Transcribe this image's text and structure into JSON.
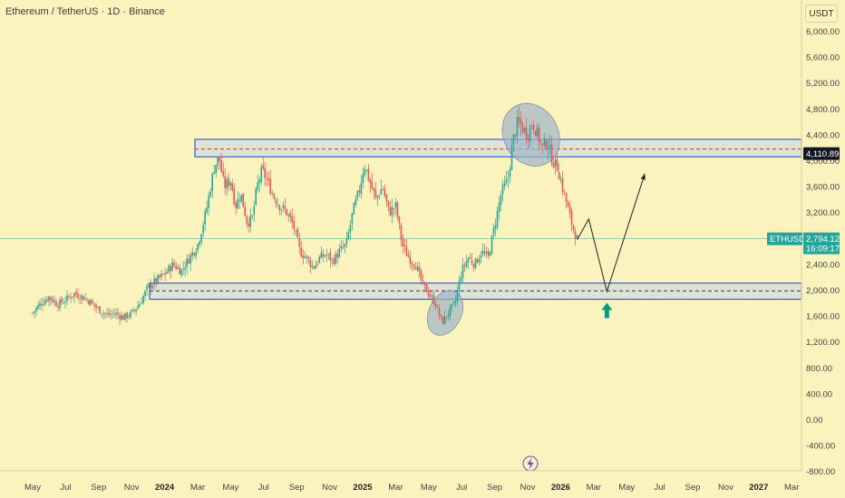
{
  "header": {
    "title": "Ethereum / TetherUS · 1D · Binance",
    "currency_button": "USDT"
  },
  "colors": {
    "background": "#fbf3bd",
    "up": "#26a69a",
    "down": "#ef5350",
    "zone_border": "#3f5bd8",
    "zone_fill": "#c9d5e8",
    "price_line": "#26a69a",
    "arrow_up": "#089981",
    "ellipse_fill": "#9fb3c8",
    "lightning": "#7b3fc4"
  },
  "chart_data": {
    "type": "candlestick",
    "title": "Ethereum / TetherUS · 1D · Binance",
    "symbol": "ETHUSDT",
    "y_axis": {
      "ticks": [
        "6,000.00",
        "5,600.00",
        "5,200.00",
        "4,800.00",
        "4,400.00",
        "4,000.00",
        "3,600.00",
        "3,200.00",
        "2,800.00",
        "2,400.00",
        "2,000.00",
        "1,600.00",
        "1,200.00",
        "800.00",
        "400.00",
        "0.00",
        "-400.00",
        "-800.00"
      ],
      "tick_values": [
        6000,
        5600,
        5200,
        4800,
        4400,
        4000,
        3600,
        3200,
        2800,
        2400,
        2000,
        1600,
        1200,
        800,
        400,
        0,
        -400,
        -800
      ],
      "range": [
        -860,
        6300
      ]
    },
    "x_axis": {
      "ticks": [
        {
          "label": "May",
          "bold": false
        },
        {
          "label": "Jul",
          "bold": false
        },
        {
          "label": "Sep",
          "bold": false
        },
        {
          "label": "Nov",
          "bold": false
        },
        {
          "label": "2024",
          "bold": true
        },
        {
          "label": "Mar",
          "bold": false
        },
        {
          "label": "May",
          "bold": false
        },
        {
          "label": "Jul",
          "bold": false
        },
        {
          "label": "Sep",
          "bold": false
        },
        {
          "label": "Nov",
          "bold": false
        },
        {
          "label": "2025",
          "bold": true
        },
        {
          "label": "Mar",
          "bold": false
        },
        {
          "label": "May",
          "bold": false
        },
        {
          "label": "Jul",
          "bold": false
        },
        {
          "label": "Sep",
          "bold": false
        },
        {
          "label": "Nov",
          "bold": false
        },
        {
          "label": "2026",
          "bold": true
        },
        {
          "label": "Mar",
          "bold": false
        },
        {
          "label": "May",
          "bold": false
        },
        {
          "label": "Jul",
          "bold": false
        },
        {
          "label": "Sep",
          "bold": false
        },
        {
          "label": "Nov",
          "bold": false
        },
        {
          "label": "2027",
          "bold": true
        },
        {
          "label": "Mar",
          "bold": false
        }
      ]
    },
    "price_path": [
      {
        "t": 0,
        "p": 1650
      },
      {
        "t": 0.5,
        "p": 1800
      },
      {
        "t": 1,
        "p": 1900
      },
      {
        "t": 1.5,
        "p": 1780
      },
      {
        "t": 2,
        "p": 1850
      },
      {
        "t": 2.5,
        "p": 1950
      },
      {
        "t": 3,
        "p": 1900
      },
      {
        "t": 3.5,
        "p": 1820
      },
      {
        "t": 4,
        "p": 1700
      },
      {
        "t": 4.5,
        "p": 1620
      },
      {
        "t": 5,
        "p": 1640
      },
      {
        "t": 5.5,
        "p": 1580
      },
      {
        "t": 6,
        "p": 1640
      },
      {
        "t": 6.5,
        "p": 1800
      },
      {
        "t": 7,
        "p": 2050
      },
      {
        "t": 7.5,
        "p": 2150
      },
      {
        "t": 8,
        "p": 2250
      },
      {
        "t": 8.5,
        "p": 2400
      },
      {
        "t": 9,
        "p": 2300
      },
      {
        "t": 9.5,
        "p": 2500
      },
      {
        "t": 10,
        "p": 2700
      },
      {
        "t": 10.5,
        "p": 3200
      },
      {
        "t": 11,
        "p": 3900
      },
      {
        "t": 11.3,
        "p": 4050
      },
      {
        "t": 11.6,
        "p": 3600
      },
      {
        "t": 12,
        "p": 3700
      },
      {
        "t": 12.3,
        "p": 3300
      },
      {
        "t": 12.6,
        "p": 3500
      },
      {
        "t": 13,
        "p": 3050
      },
      {
        "t": 13.3,
        "p": 3100
      },
      {
        "t": 13.6,
        "p": 3600
      },
      {
        "t": 13.9,
        "p": 3850
      },
      {
        "t": 14.2,
        "p": 3700
      },
      {
        "t": 14.6,
        "p": 3450
      },
      {
        "t": 15,
        "p": 3300
      },
      {
        "t": 15.4,
        "p": 3200
      },
      {
        "t": 15.8,
        "p": 3000
      },
      {
        "t": 16.2,
        "p": 2600
      },
      {
        "t": 16.6,
        "p": 2500
      },
      {
        "t": 17,
        "p": 2350
      },
      {
        "t": 17.4,
        "p": 2500
      },
      {
        "t": 17.8,
        "p": 2550
      },
      {
        "t": 18.2,
        "p": 2450
      },
      {
        "t": 18.6,
        "p": 2600
      },
      {
        "t": 19,
        "p": 2700
      },
      {
        "t": 19.4,
        "p": 3200
      },
      {
        "t": 19.8,
        "p": 3550
      },
      {
        "t": 20.1,
        "p": 3950
      },
      {
        "t": 20.4,
        "p": 3700
      },
      {
        "t": 20.8,
        "p": 3400
      },
      {
        "t": 21.2,
        "p": 3600
      },
      {
        "t": 21.6,
        "p": 3200
      },
      {
        "t": 22,
        "p": 3300
      },
      {
        "t": 22.4,
        "p": 2700
      },
      {
        "t": 22.8,
        "p": 2500
      },
      {
        "t": 23.2,
        "p": 2400
      },
      {
        "t": 23.6,
        "p": 2100
      },
      {
        "t": 24,
        "p": 1950
      },
      {
        "t": 24.4,
        "p": 1800
      },
      {
        "t": 24.8,
        "p": 1500
      },
      {
        "t": 25.2,
        "p": 1650
      },
      {
        "t": 25.6,
        "p": 1800
      },
      {
        "t": 26,
        "p": 2300
      },
      {
        "t": 26.4,
        "p": 2500
      },
      {
        "t": 26.8,
        "p": 2400
      },
      {
        "t": 27.2,
        "p": 2600
      },
      {
        "t": 27.6,
        "p": 2500
      },
      {
        "t": 28,
        "p": 3000
      },
      {
        "t": 28.4,
        "p": 3500
      },
      {
        "t": 28.8,
        "p": 3700
      },
      {
        "t": 29.1,
        "p": 4300
      },
      {
        "t": 29.4,
        "p": 4600
      },
      {
        "t": 29.7,
        "p": 4500
      },
      {
        "t": 30,
        "p": 4400
      },
      {
        "t": 30.3,
        "p": 4600
      },
      {
        "t": 30.6,
        "p": 4400
      },
      {
        "t": 30.9,
        "p": 4200
      },
      {
        "t": 31.2,
        "p": 4300
      },
      {
        "t": 31.5,
        "p": 4000
      },
      {
        "t": 31.8,
        "p": 3900
      },
      {
        "t": 32.1,
        "p": 3600
      },
      {
        "t": 32.4,
        "p": 3300
      },
      {
        "t": 32.7,
        "p": 3000
      },
      {
        "t": 33,
        "p": 2794
      }
    ],
    "zones": [
      {
        "from": 4060,
        "to": 4330
      },
      {
        "from": 1860,
        "to": 2110
      }
    ],
    "zone_dashed_levels": [
      4180,
      1990
    ],
    "highlight_ellipses": [
      {
        "t": 30.2,
        "p": 4400
      },
      {
        "t": 25.0,
        "p": 1650
      }
    ],
    "projection_path": [
      {
        "t": 33,
        "p": 2780
      },
      {
        "t": 33.7,
        "p": 3100
      },
      {
        "t": 34.8,
        "p": 1980
      },
      {
        "t": 37.1,
        "p": 3800
      }
    ],
    "up_arrow": {
      "t": 34.8,
      "p": 1680
    },
    "price_tags": [
      {
        "value": "4,110.89",
        "price": 4111,
        "style": "dark"
      },
      {
        "value": "2,794.12",
        "price": 2794,
        "style": "green",
        "symbol": "ETHUSDT",
        "countdown": "16:09:17"
      }
    ],
    "current_price": 2794.12
  }
}
